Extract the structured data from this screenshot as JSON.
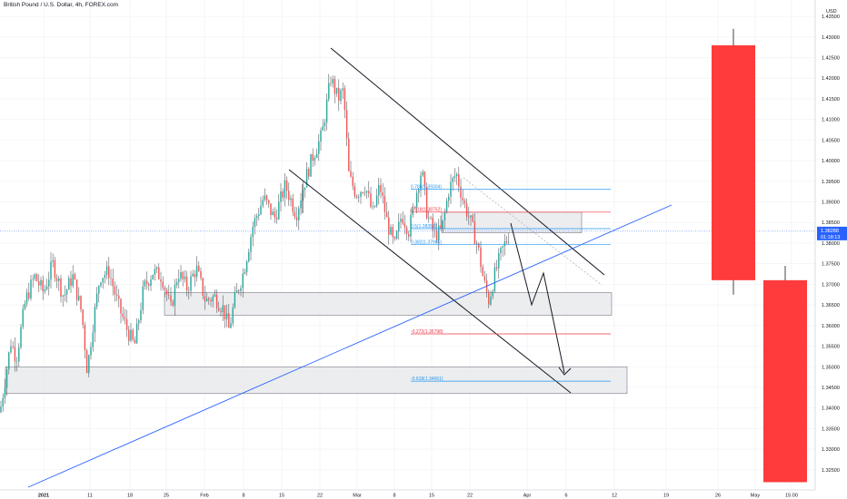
{
  "header": {
    "title": "British Pound / U.S. Dollar, 4h, FOREX.com"
  },
  "price_axis": {
    "currency": "USD",
    "last_price": "1.38288",
    "countdown": "01:18:13"
  },
  "colors": {
    "axis_bg": "#ffffff",
    "grid": "#eef0f3",
    "bull": "#26a69a",
    "bear": "#ef5350",
    "big_bear": "#ff3b3b",
    "trend_blue": "#2962ff",
    "fib_blue": "#2196f3",
    "fib_red": "#f23645",
    "price_label_bg": "#2962ff",
    "zone_fill": "#e6e7ea",
    "zone_border": "#787b86"
  },
  "chart_data": {
    "type": "candlestick",
    "symbol": "GBPUSD",
    "interval": "4h",
    "y_range": [
      1.321,
      1.437
    ],
    "y_ticks": [
      1.325,
      1.33,
      1.335,
      1.34,
      1.345,
      1.35,
      1.355,
      1.36,
      1.365,
      1.37,
      1.375,
      1.38,
      1.385,
      1.39,
      1.395,
      1.4,
      1.405,
      1.41,
      1.415,
      1.42,
      1.425,
      1.43,
      1.435
    ],
    "x_ticks": [
      "2021",
      "11",
      "18",
      "25",
      "Feb",
      "8",
      "15",
      "22",
      "Mar",
      "8",
      "15",
      "22",
      "Apr",
      "6",
      "12",
      "19",
      "26",
      "May",
      "15:00"
    ],
    "price_path": [
      [
        0,
        1.339
      ],
      [
        5,
        1.346
      ],
      [
        12,
        1.356
      ],
      [
        18,
        1.352
      ],
      [
        28,
        1.366
      ],
      [
        38,
        1.372
      ],
      [
        48,
        1.368
      ],
      [
        58,
        1.375
      ],
      [
        70,
        1.367
      ],
      [
        80,
        1.372
      ],
      [
        90,
        1.363
      ],
      [
        96,
        1.349
      ],
      [
        102,
        1.36
      ],
      [
        110,
        1.372
      ],
      [
        120,
        1.373
      ],
      [
        130,
        1.365
      ],
      [
        140,
        1.359
      ],
      [
        148,
        1.355
      ],
      [
        158,
        1.369
      ],
      [
        168,
        1.373
      ],
      [
        178,
        1.372
      ],
      [
        188,
        1.364
      ],
      [
        196,
        1.373
      ],
      [
        206,
        1.369
      ],
      [
        216,
        1.374
      ],
      [
        226,
        1.366
      ],
      [
        236,
        1.367
      ],
      [
        246,
        1.364
      ],
      [
        252,
        1.359
      ],
      [
        258,
        1.366
      ],
      [
        268,
        1.373
      ],
      [
        278,
        1.384
      ],
      [
        290,
        1.391
      ],
      [
        302,
        1.386
      ],
      [
        314,
        1.394
      ],
      [
        326,
        1.387
      ],
      [
        334,
        1.394
      ],
      [
        344,
        1.401
      ],
      [
        354,
        1.406
      ],
      [
        364,
        1.42
      ],
      [
        372,
        1.415
      ],
      [
        378,
        1.417
      ],
      [
        384,
        1.396
      ],
      [
        392,
        1.392
      ],
      [
        402,
        1.394
      ],
      [
        410,
        1.387
      ],
      [
        418,
        1.394
      ],
      [
        426,
        1.385
      ],
      [
        434,
        1.379
      ],
      [
        442,
        1.387
      ],
      [
        450,
        1.383
      ],
      [
        458,
        1.392
      ],
      [
        464,
        1.398
      ],
      [
        470,
        1.387
      ],
      [
        478,
        1.382
      ],
      [
        486,
        1.383
      ],
      [
        494,
        1.393
      ],
      [
        502,
        1.397
      ],
      [
        510,
        1.39
      ],
      [
        518,
        1.385
      ],
      [
        526,
        1.379
      ],
      [
        532,
        1.371
      ],
      [
        538,
        1.366
      ],
      [
        544,
        1.372
      ],
      [
        552,
        1.378
      ],
      [
        560,
        1.382
      ]
    ],
    "big_candles": [
      {
        "label": "26",
        "open": 1.428,
        "high": 1.432,
        "low": 1.3675,
        "close": 1.371,
        "direction": "bear"
      },
      {
        "label": "May",
        "open": 1.371,
        "high": 1.3745,
        "low": 1.322,
        "close": 1.322,
        "direction": "bear"
      }
    ],
    "fib_levels": [
      {
        "label": "0.786(1.39304)",
        "ratio": 0.786,
        "price": 1.39304,
        "color": "blue"
      },
      {
        "label": "0.618(1.38752)",
        "ratio": 0.618,
        "price": 1.38752,
        "color": "red"
      },
      {
        "label": "0.5(1.38352)",
        "ratio": 0.5,
        "price": 1.38352,
        "color": "blue"
      },
      {
        "label": "0.382(1.37965)",
        "ratio": 0.382,
        "price": 1.37965,
        "color": "blue"
      },
      {
        "label": "-0.272(1.35798)",
        "ratio": -0.272,
        "price": 1.35798,
        "color": "red"
      },
      {
        "label": "-0.618(1.34651)",
        "ratio": -0.618,
        "price": 1.34651,
        "color": "blue"
      }
    ],
    "zones": [
      {
        "name": "zone-fib-golden",
        "top": 1.3875,
        "bottom": 1.3825
      },
      {
        "name": "zone-support-mid",
        "top": 1.368,
        "bottom": 1.3625
      },
      {
        "name": "zone-support-low",
        "top": 1.35,
        "bottom": 1.3435
      }
    ]
  }
}
